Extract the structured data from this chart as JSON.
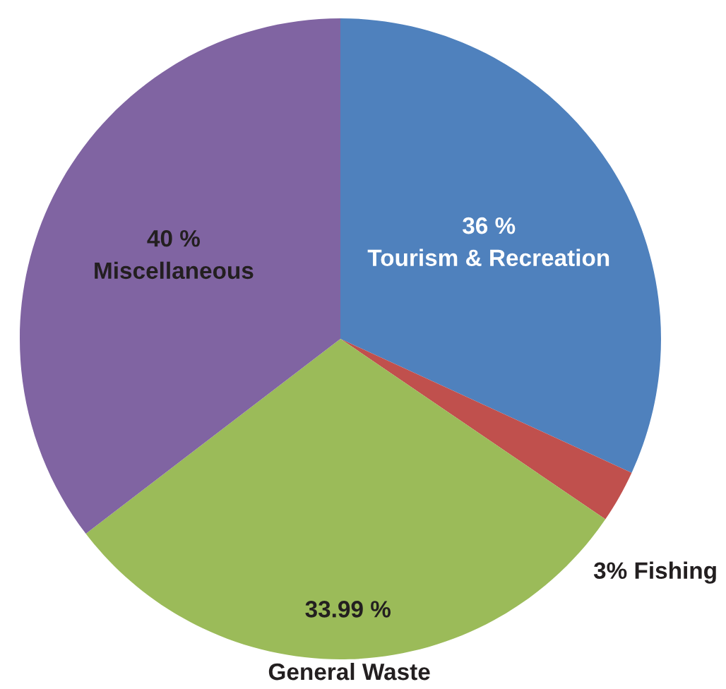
{
  "chart_data": {
    "type": "pie",
    "categories": [
      "Tourism & Recreation",
      "Fishing",
      "General Waste",
      "Miscellaneous"
    ],
    "values": [
      36,
      3,
      33.99,
      40
    ],
    "colors": [
      "#4f81bd",
      "#c0504d",
      "#9bbb59",
      "#8064a2"
    ],
    "value_labels": [
      "36 %",
      "3%",
      "33.99 %",
      "40 %"
    ]
  }
}
